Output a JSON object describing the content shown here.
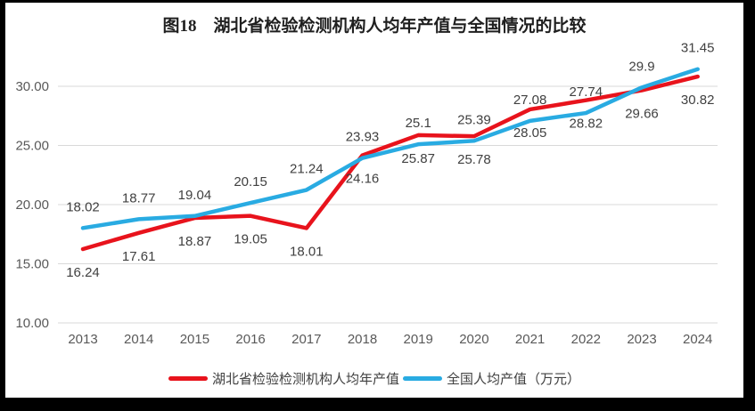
{
  "frame": {
    "border_color": "#000000",
    "background_color": "#ffffff"
  },
  "chart_data": {
    "type": "line",
    "title": "图18　湖北省检验检测机构人均年产值与全国情况的比较",
    "categories": [
      "2013",
      "2014",
      "2015",
      "2016",
      "2017",
      "2018",
      "2019",
      "2020",
      "2021",
      "2022",
      "2023",
      "2024"
    ],
    "series": [
      {
        "name": "湖北省检验检测机构人均年产值",
        "color": "#e8131c",
        "label_position": "below",
        "values": [
          16.24,
          17.61,
          18.87,
          19.05,
          18.01,
          24.16,
          25.87,
          25.78,
          28.05,
          28.82,
          29.66,
          30.82
        ]
      },
      {
        "name": "全国人均产值（万元）",
        "color": "#29abe2",
        "label_position": "above",
        "values": [
          18.02,
          18.77,
          19.04,
          20.15,
          21.24,
          23.93,
          25.1,
          25.39,
          27.08,
          27.74,
          29.9,
          31.45
        ]
      }
    ],
    "yticks": [
      10,
      15,
      20,
      25,
      30
    ],
    "ytick_format_decimals": 2,
    "ylim": [
      10,
      32
    ],
    "grid": "horizontal",
    "grid_color": "#d9d9d9",
    "axis_label_color": "#595959",
    "data_label_color": "#404040",
    "data_labels": true,
    "legend_position": "bottom"
  }
}
